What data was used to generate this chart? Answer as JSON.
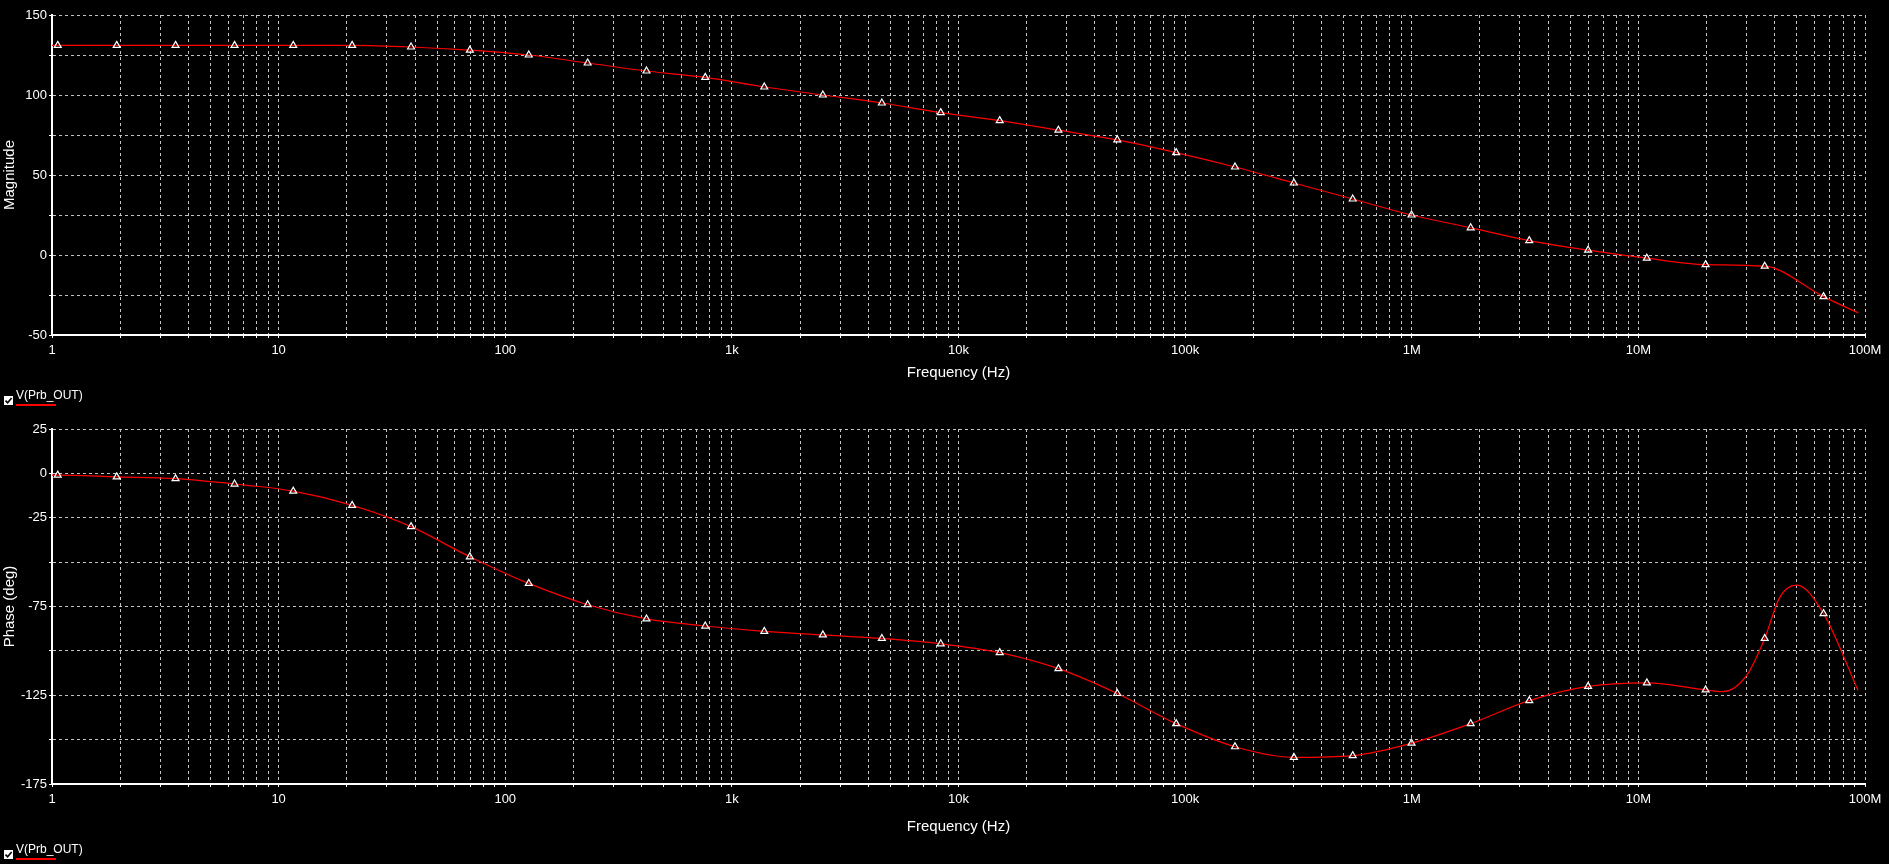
{
  "chart_data": [
    {
      "type": "line",
      "xlabel": "Frequency (Hz)",
      "ylabel": "Magnitude",
      "log": "x",
      "grid": true,
      "legend": "bottom left",
      "xlim": [
        1,
        100000000
      ],
      "xticks": [
        1,
        {
          "value": 2,
          "label": null
        },
        {
          "value": 3,
          "label": null
        },
        {
          "value": 4,
          "label": null
        },
        {
          "value": 5,
          "label": null
        },
        {
          "value": 6,
          "label": null
        },
        {
          "value": 7,
          "label": null
        },
        {
          "value": 8,
          "label": null
        },
        {
          "value": 9,
          "label": null
        },
        10,
        {
          "value": 20,
          "label": null
        },
        {
          "value": 30,
          "label": null
        },
        {
          "value": 40,
          "label": null
        },
        {
          "value": 50,
          "label": null
        },
        {
          "value": 60,
          "label": null
        },
        {
          "value": 70,
          "label": null
        },
        {
          "value": 80,
          "label": null
        },
        {
          "value": 90,
          "label": null
        },
        100,
        {
          "value": 200,
          "label": null
        },
        {
          "value": 300,
          "label": null
        },
        {
          "value": 400,
          "label": null
        },
        {
          "value": 500,
          "label": null
        },
        {
          "value": 600,
          "label": null
        },
        {
          "value": 700,
          "label": null
        },
        {
          "value": 800,
          "label": null
        },
        {
          "value": 900,
          "label": null
        },
        {
          "value": 1000,
          "label": "1k"
        },
        {
          "value": 2000,
          "label": null
        },
        {
          "value": 3000,
          "label": null
        },
        {
          "value": 4000,
          "label": null
        },
        {
          "value": 5000,
          "label": null
        },
        {
          "value": 6000,
          "label": null
        },
        {
          "value": 7000,
          "label": null
        },
        {
          "value": 8000,
          "label": null
        },
        {
          "value": 9000,
          "label": null
        },
        {
          "value": 10000,
          "label": "10k"
        },
        {
          "value": 20000,
          "label": null
        },
        {
          "value": 30000,
          "label": null
        },
        {
          "value": 40000,
          "label": null
        },
        {
          "value": 50000,
          "label": null
        },
        {
          "value": 60000,
          "label": null
        },
        {
          "value": 70000,
          "label": null
        },
        {
          "value": 80000,
          "label": null
        },
        {
          "value": 90000,
          "label": null
        },
        {
          "value": 100000,
          "label": "100k"
        },
        {
          "value": 200000,
          "label": null
        },
        {
          "value": 300000,
          "label": null
        },
        {
          "value": 400000,
          "label": null
        },
        {
          "value": 500000,
          "label": null
        },
        {
          "value": 600000,
          "label": null
        },
        {
          "value": 700000,
          "label": null
        },
        {
          "value": 800000,
          "label": null
        },
        {
          "value": 900000,
          "label": null
        },
        {
          "value": 1000000,
          "label": "1M"
        },
        {
          "value": 2000000,
          "label": null
        },
        {
          "value": 3000000,
          "label": null
        },
        {
          "value": 4000000,
          "label": null
        },
        {
          "value": 5000000,
          "label": null
        },
        {
          "value": 6000000,
          "label": null
        },
        {
          "value": 7000000,
          "label": null
        },
        {
          "value": 8000000,
          "label": null
        },
        {
          "value": 9000000,
          "label": null
        },
        {
          "value": 10000000,
          "label": "10M"
        },
        {
          "value": 20000000,
          "label": null
        },
        {
          "value": 30000000,
          "label": null
        },
        {
          "value": 40000000,
          "label": null
        },
        {
          "value": 50000000,
          "label": null
        },
        {
          "value": 60000000,
          "label": null
        },
        {
          "value": 70000000,
          "label": null
        },
        {
          "value": 80000000,
          "label": null
        },
        {
          "value": 90000000,
          "label": null
        },
        {
          "value": 100000000,
          "label": "100M"
        }
      ],
      "ylim": [
        -50,
        150
      ],
      "yticks": [
        -50,
        {
          "value": -25,
          "label": null
        },
        0,
        {
          "value": 25,
          "label": null
        },
        50,
        {
          "value": 75,
          "label": null
        },
        100,
        {
          "value": 125,
          "label": null
        },
        150
      ],
      "series": [
        {
          "name": "V(Prb_OUT)",
          "color": "#ff0000",
          "x": [
            1,
            1.06,
            1.93,
            3.51,
            6.39,
            11.6,
            21.1,
            38.4,
            69.8,
            127,
            231,
            420,
            763,
            1390,
            2520,
            4590,
            8350,
            15200,
            27600,
            50200,
            91300,
            166000,
            302000,
            549000,
            998000,
            1820000,
            3300000,
            6000000,
            10900000,
            19800000,
            36100000,
            65600000,
            93000000
          ],
          "values": [
            131,
            131,
            131,
            131,
            131,
            131,
            131,
            130,
            128,
            125,
            120,
            115,
            111,
            105,
            100,
            95,
            89,
            84,
            78,
            72,
            64,
            55,
            45,
            35,
            25,
            17,
            9,
            3,
            -2,
            -6,
            -7,
            -26,
            -36
          ]
        },
        {
          "type": "scatter",
          "color": "#ffffff",
          "marker": "triangle",
          "x": [
            1.06,
            1.93,
            3.51,
            6.39,
            11.6,
            21.1,
            38.4,
            69.8,
            127,
            231,
            420,
            763,
            1390,
            2520,
            4590,
            8350,
            15200,
            27600,
            50200,
            91300,
            166000,
            302000,
            549000,
            998000,
            1820000,
            3300000,
            6000000,
            10900000,
            19800000,
            36100000,
            65600000
          ],
          "values": [
            131,
            131,
            131,
            131,
            131,
            131,
            130,
            128,
            125,
            120,
            115,
            111,
            105,
            100,
            95,
            89,
            84,
            78,
            72,
            64,
            55,
            45,
            35,
            25,
            17,
            9,
            3,
            -2,
            -6,
            -7,
            -26
          ]
        }
      ]
    },
    {
      "type": "line",
      "xlabel": "Frequency (Hz)",
      "ylabel": "Phase (deg)",
      "log": "x",
      "grid": true,
      "legend": "bottom left",
      "xlim": [
        1,
        100000000
      ],
      "xticks": [
        1,
        {
          "value": 2,
          "label": null
        },
        {
          "value": 3,
          "label": null
        },
        {
          "value": 4,
          "label": null
        },
        {
          "value": 5,
          "label": null
        },
        {
          "value": 6,
          "label": null
        },
        {
          "value": 7,
          "label": null
        },
        {
          "value": 8,
          "label": null
        },
        {
          "value": 9,
          "label": null
        },
        10,
        {
          "value": 20,
          "label": null
        },
        {
          "value": 30,
          "label": null
        },
        {
          "value": 40,
          "label": null
        },
        {
          "value": 50,
          "label": null
        },
        {
          "value": 60,
          "label": null
        },
        {
          "value": 70,
          "label": null
        },
        {
          "value": 80,
          "label": null
        },
        {
          "value": 90,
          "label": null
        },
        100,
        {
          "value": 200,
          "label": null
        },
        {
          "value": 300,
          "label": null
        },
        {
          "value": 400,
          "label": null
        },
        {
          "value": 500,
          "label": null
        },
        {
          "value": 600,
          "label": null
        },
        {
          "value": 700,
          "label": null
        },
        {
          "value": 800,
          "label": null
        },
        {
          "value": 900,
          "label": null
        },
        {
          "value": 1000,
          "label": "1k"
        },
        {
          "value": 2000,
          "label": null
        },
        {
          "value": 3000,
          "label": null
        },
        {
          "value": 4000,
          "label": null
        },
        {
          "value": 5000,
          "label": null
        },
        {
          "value": 6000,
          "label": null
        },
        {
          "value": 7000,
          "label": null
        },
        {
          "value": 8000,
          "label": null
        },
        {
          "value": 9000,
          "label": null
        },
        {
          "value": 10000,
          "label": "10k"
        },
        {
          "value": 20000,
          "label": null
        },
        {
          "value": 30000,
          "label": null
        },
        {
          "value": 40000,
          "label": null
        },
        {
          "value": 50000,
          "label": null
        },
        {
          "value": 60000,
          "label": null
        },
        {
          "value": 70000,
          "label": null
        },
        {
          "value": 80000,
          "label": null
        },
        {
          "value": 90000,
          "label": null
        },
        {
          "value": 100000,
          "label": "100k"
        },
        {
          "value": 200000,
          "label": null
        },
        {
          "value": 300000,
          "label": null
        },
        {
          "value": 400000,
          "label": null
        },
        {
          "value": 500000,
          "label": null
        },
        {
          "value": 600000,
          "label": null
        },
        {
          "value": 700000,
          "label": null
        },
        {
          "value": 800000,
          "label": null
        },
        {
          "value": 900000,
          "label": null
        },
        {
          "value": 1000000,
          "label": "1M"
        },
        {
          "value": 2000000,
          "label": null
        },
        {
          "value": 3000000,
          "label": null
        },
        {
          "value": 4000000,
          "label": null
        },
        {
          "value": 5000000,
          "label": null
        },
        {
          "value": 6000000,
          "label": null
        },
        {
          "value": 7000000,
          "label": null
        },
        {
          "value": 8000000,
          "label": null
        },
        {
          "value": 9000000,
          "label": null
        },
        {
          "value": 10000000,
          "label": "10M"
        },
        {
          "value": 20000000,
          "label": null
        },
        {
          "value": 30000000,
          "label": null
        },
        {
          "value": 40000000,
          "label": null
        },
        {
          "value": 50000000,
          "label": null
        },
        {
          "value": 60000000,
          "label": null
        },
        {
          "value": 70000000,
          "label": null
        },
        {
          "value": 80000000,
          "label": null
        },
        {
          "value": 90000000,
          "label": null
        },
        {
          "value": 100000000,
          "label": "100M"
        }
      ],
      "ylim": [
        -175,
        25
      ],
      "yticks": [
        -175,
        {
          "value": -150,
          "label": null
        },
        -125,
        {
          "value": -100,
          "label": null
        },
        -75,
        {
          "value": -50,
          "label": null
        },
        -25,
        0,
        25
      ],
      "series": [
        {
          "name": "V(Prb_OUT)",
          "color": "#ff0000",
          "x": [
            1,
            1.06,
            1.93,
            3.51,
            6.39,
            11.6,
            21.1,
            38.4,
            69.8,
            127,
            231,
            420,
            763,
            1390,
            2520,
            4590,
            8350,
            15200,
            27600,
            50200,
            91300,
            166000,
            302000,
            549000,
            998000,
            1820000,
            3300000,
            6000000,
            10900000,
            19800000,
            23600000,
            30000000,
            36100000,
            42000000,
            50000000,
            65600000,
            93000000
          ],
          "values": [
            -1,
            -1,
            -2,
            -3,
            -6,
            -10,
            -18,
            -30,
            -47,
            -62,
            -74,
            -82,
            -86,
            -89,
            -91,
            -93,
            -96,
            -101,
            -110,
            -124,
            -141,
            -154,
            -160,
            -159,
            -152,
            -141,
            -128,
            -120,
            -118,
            -122,
            -123,
            -114,
            -93,
            -70,
            -63,
            -79,
            -122
          ]
        },
        {
          "type": "scatter",
          "color": "#ffffff",
          "marker": "triangle",
          "x": [
            1.06,
            1.93,
            3.51,
            6.39,
            11.6,
            21.1,
            38.4,
            69.8,
            127,
            231,
            420,
            763,
            1390,
            2520,
            4590,
            8350,
            15200,
            27600,
            50200,
            91300,
            166000,
            302000,
            549000,
            998000,
            1820000,
            3300000,
            6000000,
            10900000,
            19800000,
            36100000,
            65600000
          ],
          "values": [
            -1,
            -2,
            -3,
            -6,
            -10,
            -18,
            -30,
            -47,
            -62,
            -74,
            -82,
            -86,
            -89,
            -91,
            -93,
            -96,
            -101,
            -110,
            -124,
            -141,
            -154,
            -160,
            -159,
            -152,
            -141,
            -128,
            -120,
            -118,
            -122,
            -93,
            -79
          ]
        }
      ]
    }
  ]
}
